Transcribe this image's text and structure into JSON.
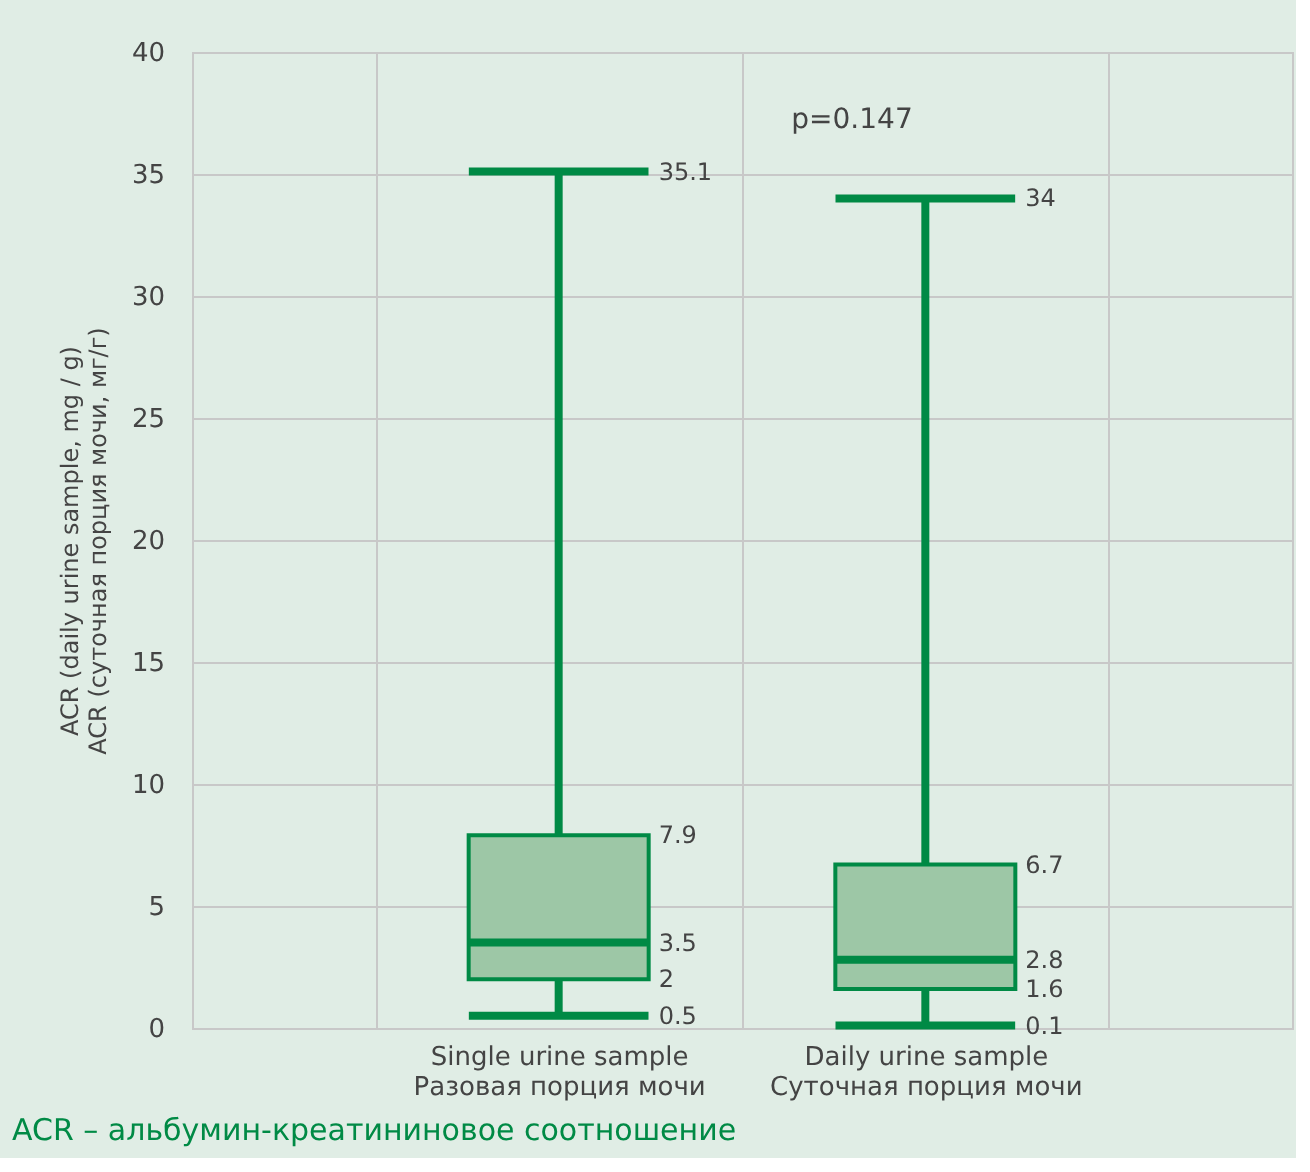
{
  "chart_data": {
    "type": "box",
    "xlabel": null,
    "ylabel": "ACR (daily urine sample, mg / g)\nACR (суточная порция мочи, мг/г)",
    "categories": [
      "Single urine sample\nРазовая порция мочи",
      "Daily urine sample\nСуточная порция мочи"
    ],
    "boxes": [
      {
        "low": 0.5,
        "q1": 2,
        "median": 3.5,
        "q3": 7.9,
        "high": 35.1
      },
      {
        "low": 0.1,
        "q1": 1.6,
        "median": 2.8,
        "q3": 6.7,
        "high": 34
      }
    ],
    "value_labels": [
      [
        "0.5",
        "2",
        "3.5",
        "7.9",
        "35.1"
      ],
      [
        "0.1",
        "1.6",
        "2.8",
        "6.7",
        "34"
      ]
    ],
    "color": "#008a45",
    "ylim": [
      0,
      40
    ],
    "yticks": [
      0,
      5,
      10,
      15,
      20,
      25,
      30,
      35,
      40
    ],
    "grid": true,
    "data_labels": true,
    "annotations": [
      "p=0.147",
      "ACR – альбумин-креатининовое соотношение"
    ]
  }
}
